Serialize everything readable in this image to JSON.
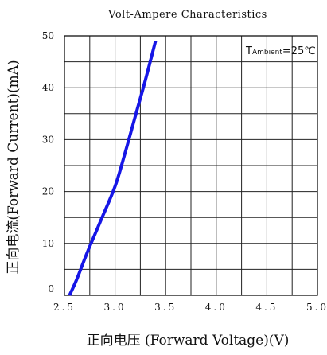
{
  "chart_data": {
    "type": "line",
    "title": "Volt-Ampere Characteristics",
    "xlabel": "正向电压 (Forward Voltage)(V)",
    "ylabel": "正向电流(Forward Current)(mA)",
    "xlim": [
      2.5,
      5.0
    ],
    "ylim": [
      0,
      50
    ],
    "x_ticks": [
      2.5,
      3.0,
      3.5,
      4.0,
      4.5,
      5.0
    ],
    "x_tick_labels": [
      "2.5",
      "3.0",
      "3.5",
      "4.0",
      "4.5",
      "5.0"
    ],
    "y_ticks": [
      0,
      10,
      20,
      30,
      40,
      50
    ],
    "y_tick_labels": [
      "0",
      "10",
      "20",
      "30",
      "40",
      "50"
    ],
    "grid": true,
    "annotation": {
      "prefix": "T",
      "sub": "Ambient",
      "value": "=25℃"
    },
    "series": [
      {
        "color": "#1616e6",
        "x": [
          2.55,
          2.62,
          2.72,
          2.85,
          3.0,
          3.1,
          3.2,
          3.3,
          3.4
        ],
        "y": [
          0,
          3,
          8,
          14,
          21,
          27.5,
          34.5,
          41.5,
          49
        ]
      }
    ]
  }
}
